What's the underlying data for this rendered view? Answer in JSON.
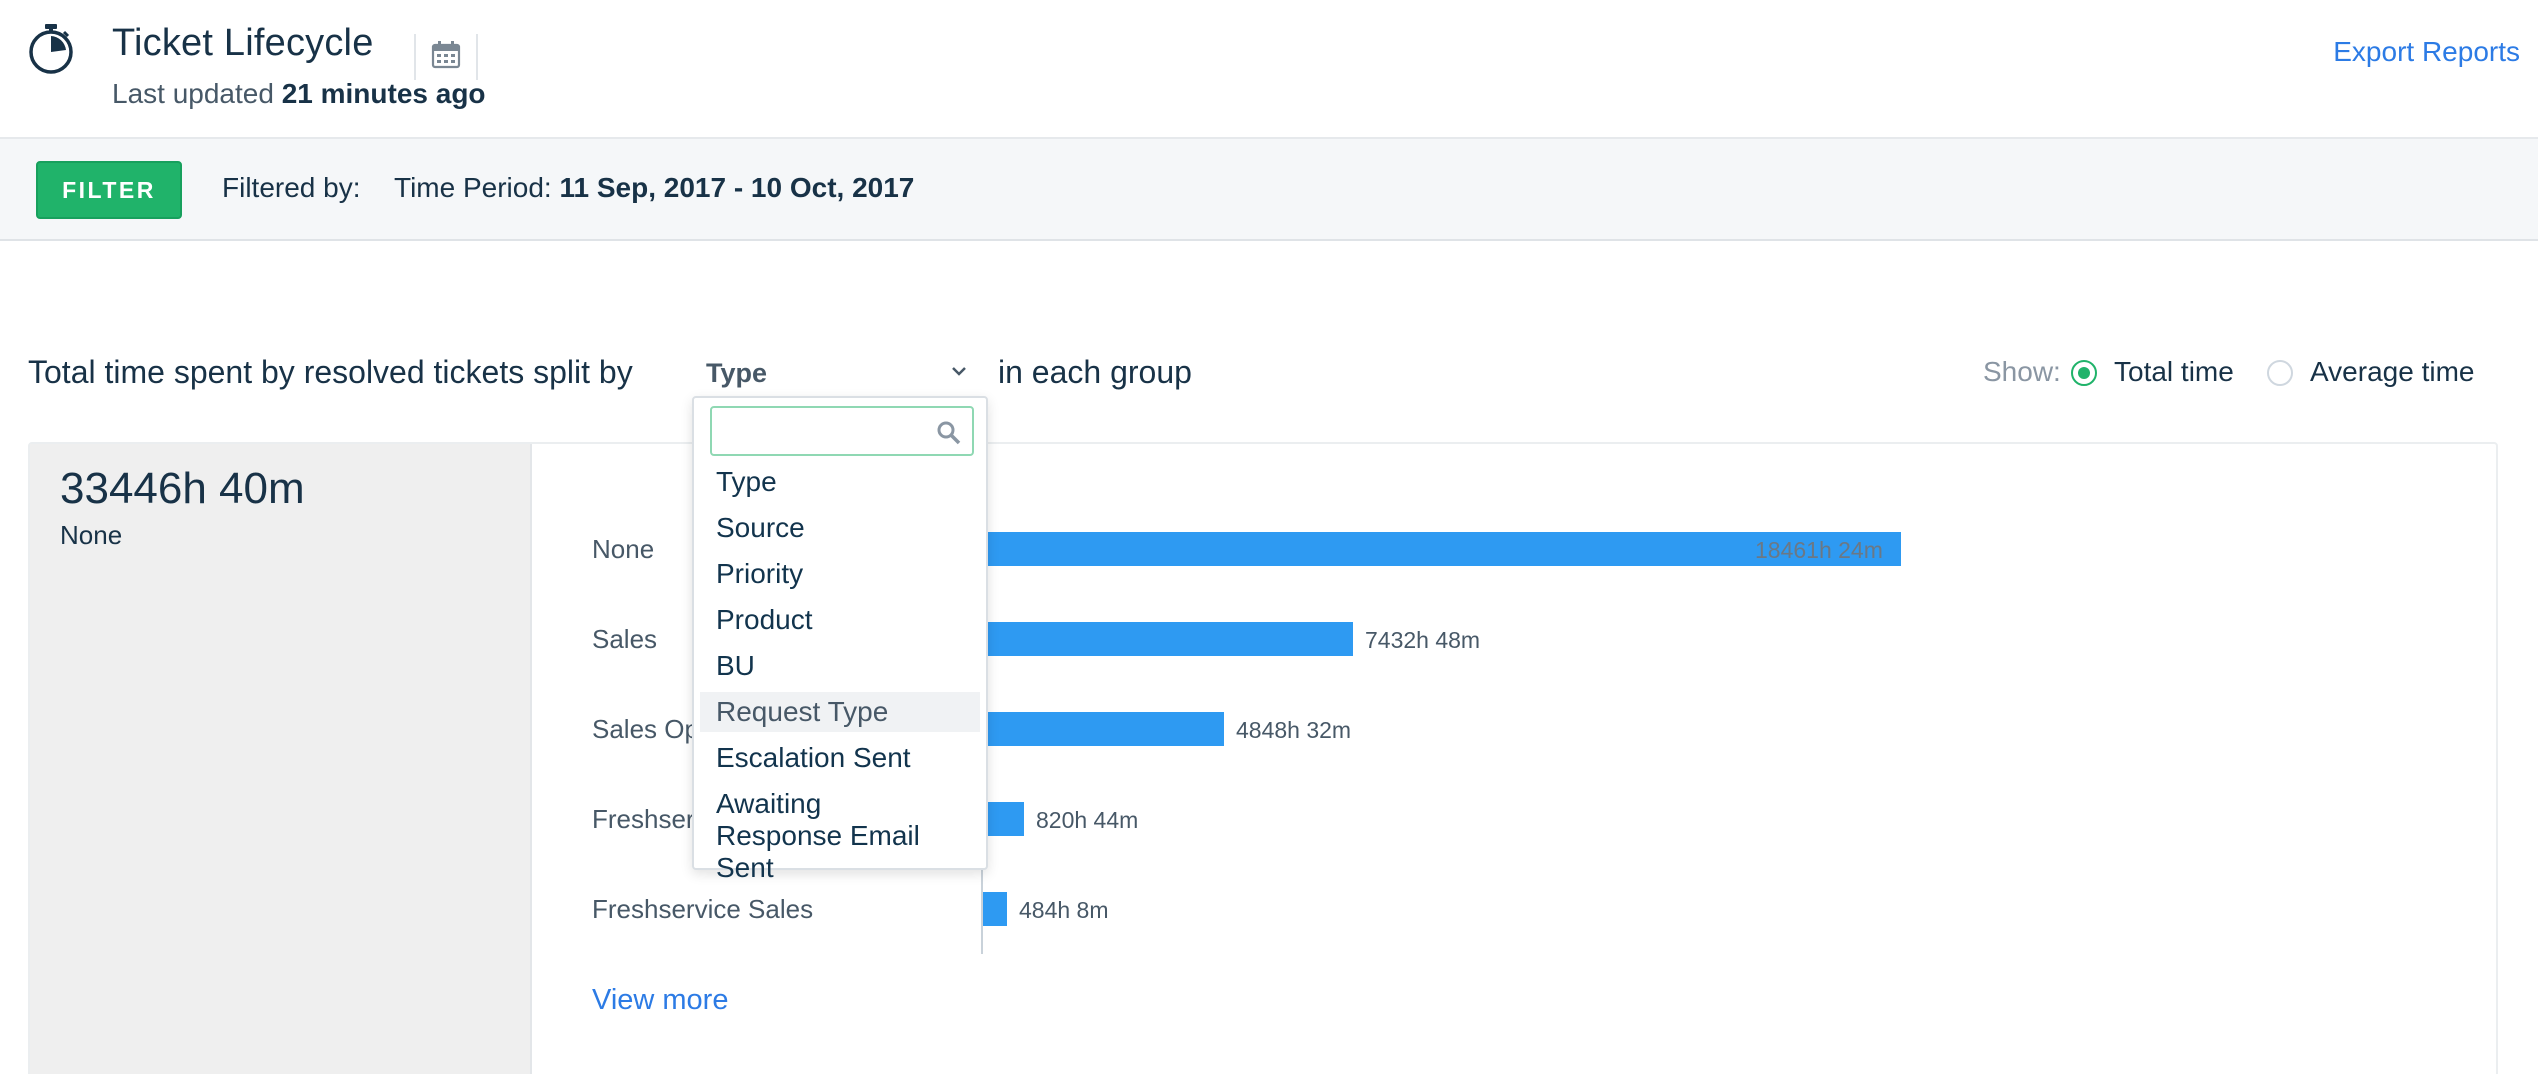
{
  "header": {
    "title": "Ticket Lifecycle",
    "updated_prefix": "Last updated",
    "updated_value": "21 minutes ago",
    "export_label": "Export Reports"
  },
  "filter": {
    "button_label": "FILTER",
    "filtered_by_label": "Filtered by:",
    "period_label": "Time Period:",
    "period_value": "11 Sep, 2017 - 10 Oct, 2017"
  },
  "split": {
    "prefix": "Total time spent by resolved tickets split by",
    "selected": "Type",
    "suffix": "in each group"
  },
  "show": {
    "label": "Show:",
    "options": [
      "Total time",
      "Average time"
    ],
    "selected": "Total time"
  },
  "summary": {
    "value": "33446h 40m",
    "caption": "None"
  },
  "chart_data": {
    "type": "bar",
    "orientation": "horizontal",
    "categories": [
      "None",
      "Sales",
      "Sales Op",
      "Freshser",
      "Freshservice Sales"
    ],
    "values_hours": [
      18461.4,
      7432.8,
      4848.53,
      820.73,
      484.13
    ],
    "value_labels": [
      "18461h 24m",
      "7432h 48m",
      "4848h 32m",
      "820h 44m",
      "484h 8m"
    ],
    "bar_color": "#2e9af2"
  },
  "view_more_label": "View more",
  "dropdown": {
    "search_placeholder": "",
    "items": [
      "Type",
      "Source",
      "Priority",
      "Product",
      "BU",
      "Request Type",
      "Escalation Sent",
      "Awaiting Response Email Sent"
    ],
    "highlighted": "Request Type"
  },
  "icons": {
    "header": "stopwatch-icon",
    "calendar": "calendar-icon",
    "search": "search-icon",
    "chevron": "chevron-down-icon"
  },
  "colors": {
    "accent_green": "#20b36a",
    "link_blue": "#2c7be5",
    "bar_blue": "#2e9af2"
  }
}
